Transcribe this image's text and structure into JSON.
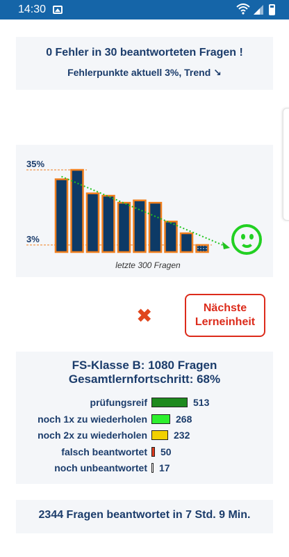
{
  "status_bar": {
    "time": "14:30",
    "icons": [
      "gallery-icon",
      "wifi-icon",
      "signal-icon",
      "battery-icon"
    ]
  },
  "summary": {
    "headline": "0 Fehler in 30 beantworteten Fragen !",
    "subline": "Fehlerpunkte aktuell 3%,  Trend ",
    "trend_icon": "↘"
  },
  "chart_data": {
    "type": "bar",
    "values": [
      31,
      35,
      25,
      24,
      21,
      22,
      21,
      13,
      8,
      3
    ],
    "y_reference_labels": [
      "35%",
      "3%"
    ],
    "y_reference_values": [
      35,
      3
    ],
    "caption": "letzte 300 Fragen",
    "trend": "down",
    "colors": {
      "bar_fill": "#0d3a66",
      "bar_border": "#f07f1e",
      "trend_line": "#22c41f",
      "reference_line": "#f07f1e"
    }
  },
  "mood_icon": "smiley-icon",
  "actions": {
    "close_icon": "✖",
    "next_button": "Nächste Lerneinheit"
  },
  "stats": {
    "title": "FS-Klasse B: 1080 Fragen",
    "progress": "Gesamtlernfortschritt: 68%",
    "rows": [
      {
        "label": "prüfungsreif",
        "count": "513",
        "color": "#1e8a1e",
        "value": 513
      },
      {
        "label": "noch 1x zu wiederholen",
        "count": "268",
        "color": "#2ef02e",
        "value": 268
      },
      {
        "label": "noch 2x zu wiederholen",
        "count": "232",
        "color": "#f2d100",
        "value": 232
      },
      {
        "label": "falsch beantwortet",
        "count": "50",
        "color": "#dd3a1d",
        "value": 50
      },
      {
        "label": "noch unbeantwortet",
        "count": "17",
        "color": "#ffffff",
        "value": 17
      }
    ]
  },
  "footer": "2344 Fragen beantwortet in 7 Std. 9 Min."
}
